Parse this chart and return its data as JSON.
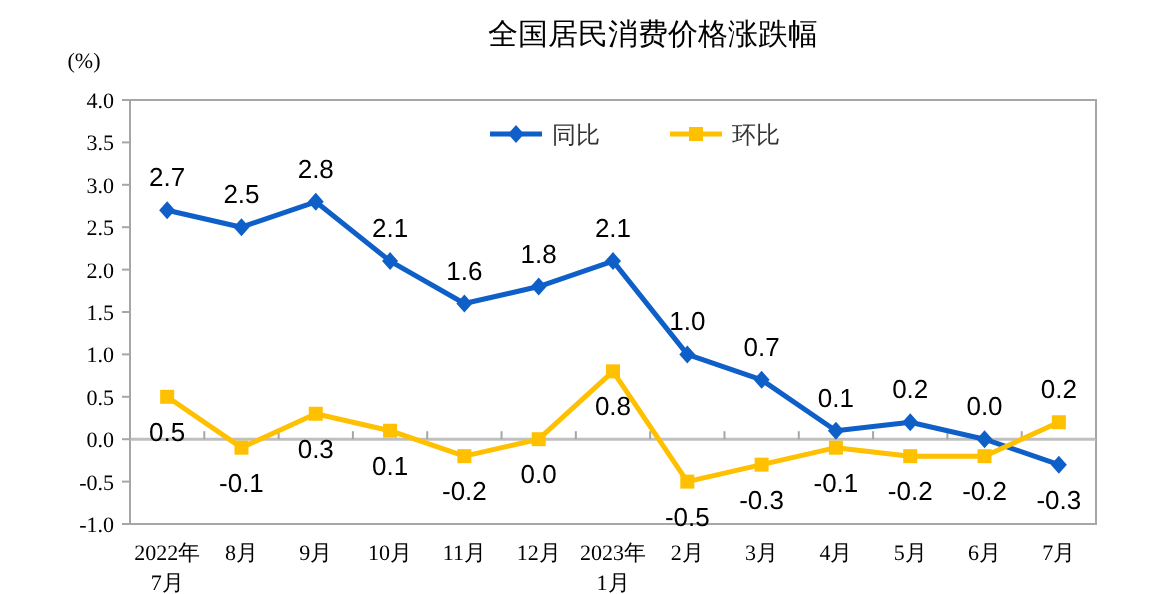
{
  "chart_data": {
    "type": "line",
    "title": "全国居民消费价格涨跌幅",
    "ylabel": "(%)",
    "categories": [
      "2022年\n7月",
      "8月",
      "9月",
      "10月",
      "11月",
      "12月",
      "2023年\n1月",
      "2月",
      "3月",
      "4月",
      "5月",
      "6月",
      "7月"
    ],
    "series": [
      {
        "name": "同比",
        "color": "#0f5fc8",
        "marker": "diamond",
        "values": [
          2.7,
          2.5,
          2.8,
          2.1,
          1.6,
          1.8,
          2.1,
          1.0,
          0.7,
          0.1,
          0.2,
          0.0,
          -0.3
        ],
        "value_labels": [
          "2.7",
          "2.5",
          "2.8",
          "2.1",
          "1.6",
          "1.8",
          "2.1",
          "1.0",
          "0.7",
          "0.1",
          "0.2",
          "0.0",
          "-0.3"
        ]
      },
      {
        "name": "环比",
        "color": "#ffc000",
        "marker": "square",
        "values": [
          0.5,
          -0.1,
          0.3,
          0.1,
          -0.2,
          0.0,
          0.8,
          -0.5,
          -0.3,
          -0.1,
          -0.2,
          -0.2,
          0.2
        ],
        "value_labels": [
          "0.5",
          "-0.1",
          "0.3",
          "0.1",
          "-0.2",
          "0.0",
          "0.8",
          "-0.5",
          "-0.3",
          "-0.1",
          "-0.2",
          "-0.2",
          "0.2"
        ]
      }
    ],
    "ylim": [
      -1.0,
      4.0
    ],
    "yticks": [
      {
        "value": -1,
        "label": "-1.0"
      },
      {
        "value": -0.5,
        "label": "-0.5"
      },
      {
        "value": 0,
        "label": "0.0"
      },
      {
        "value": 0.5,
        "label": "0.5"
      },
      {
        "value": 1,
        "label": "1.0"
      },
      {
        "value": 1.5,
        "label": "1.5"
      },
      {
        "value": 2,
        "label": "2.0"
      },
      {
        "value": 2.5,
        "label": "2.5"
      },
      {
        "value": 3,
        "label": "3.0"
      },
      {
        "value": 3.5,
        "label": "3.5"
      },
      {
        "value": 4,
        "label": "4.0"
      }
    ],
    "ref_lines": [
      {
        "axis": "y",
        "value": 0,
        "color": "#bfbfbf"
      }
    ],
    "legend": "top right",
    "grid": false,
    "line_style": "solid"
  }
}
